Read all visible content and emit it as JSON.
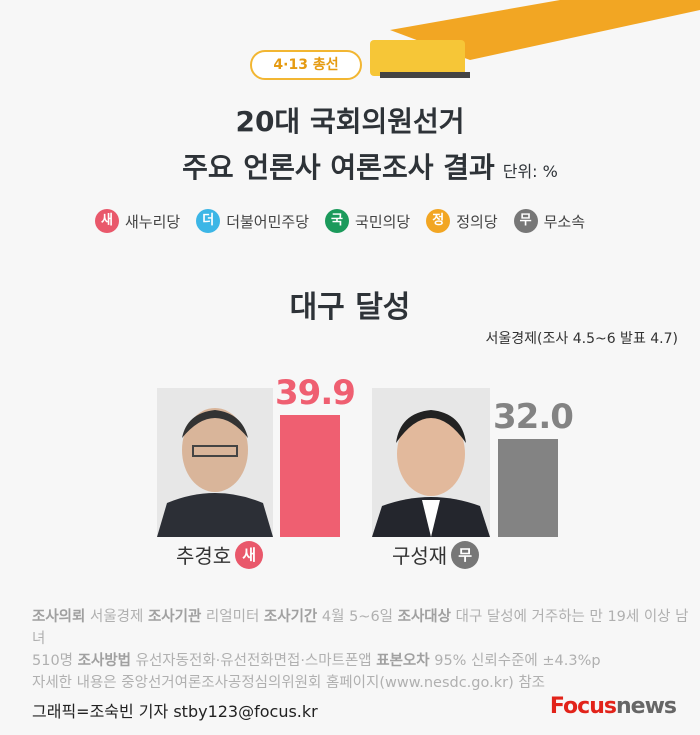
{
  "header": {
    "event_label": "4·13 총선",
    "title_line1": "20대 국회의원선거",
    "title_line2": "주요 언론사 여론조사 결과",
    "unit": "단위: %"
  },
  "legend": [
    {
      "abbr": "새",
      "label": "새누리당",
      "color": "#e9586b"
    },
    {
      "abbr": "더",
      "label": "더불어민주당",
      "color": "#3cb6e6"
    },
    {
      "abbr": "국",
      "label": "국민의당",
      "color": "#1b9a5b"
    },
    {
      "abbr": "정",
      "label": "정의당",
      "color": "#f2a623"
    },
    {
      "abbr": "무",
      "label": "무소속",
      "color": "#777777"
    }
  ],
  "region": "대구 달성",
  "source": "서울경제(조사 4.5~6 발표 4.7)",
  "chart_data": {
    "type": "bar",
    "categories": [
      "추경호",
      "구성재"
    ],
    "parties": [
      "새",
      "무"
    ],
    "values": [
      39.9,
      32.0
    ],
    "value_labels": [
      "39.9",
      "32.0"
    ],
    "colors": [
      "#ef5f71",
      "#838383"
    ]
  },
  "notes": {
    "line1": [
      [
        "조사의뢰",
        true
      ],
      [
        " 서울경제 ",
        false
      ],
      [
        "조사기관",
        true
      ],
      [
        " 리얼미터 ",
        false
      ],
      [
        "조사기간",
        true
      ],
      [
        " 4월 5~6일 ",
        false
      ],
      [
        "조사대상",
        true
      ],
      [
        " 대구 달성에 거주하는 만 19세 이상 남녀",
        false
      ]
    ],
    "line2": [
      [
        "510명 ",
        false
      ],
      [
        "조사방법",
        true
      ],
      [
        " 유선자동전화·유선전화면접·스마트폰앱  ",
        false
      ],
      [
        "표본오차",
        true
      ],
      [
        " 95% 신뢰수준에 ±4.3%p",
        false
      ]
    ],
    "line3": "자세한 내용은 중앙선거여론조사공정심의위원회 홈페이지(www.nesdc.go.kr) 참조"
  },
  "footer": {
    "credit": "그래픽=조숙빈 기자 stby123@focus.kr",
    "logo_red": "Focus",
    "logo_gray": "news"
  }
}
